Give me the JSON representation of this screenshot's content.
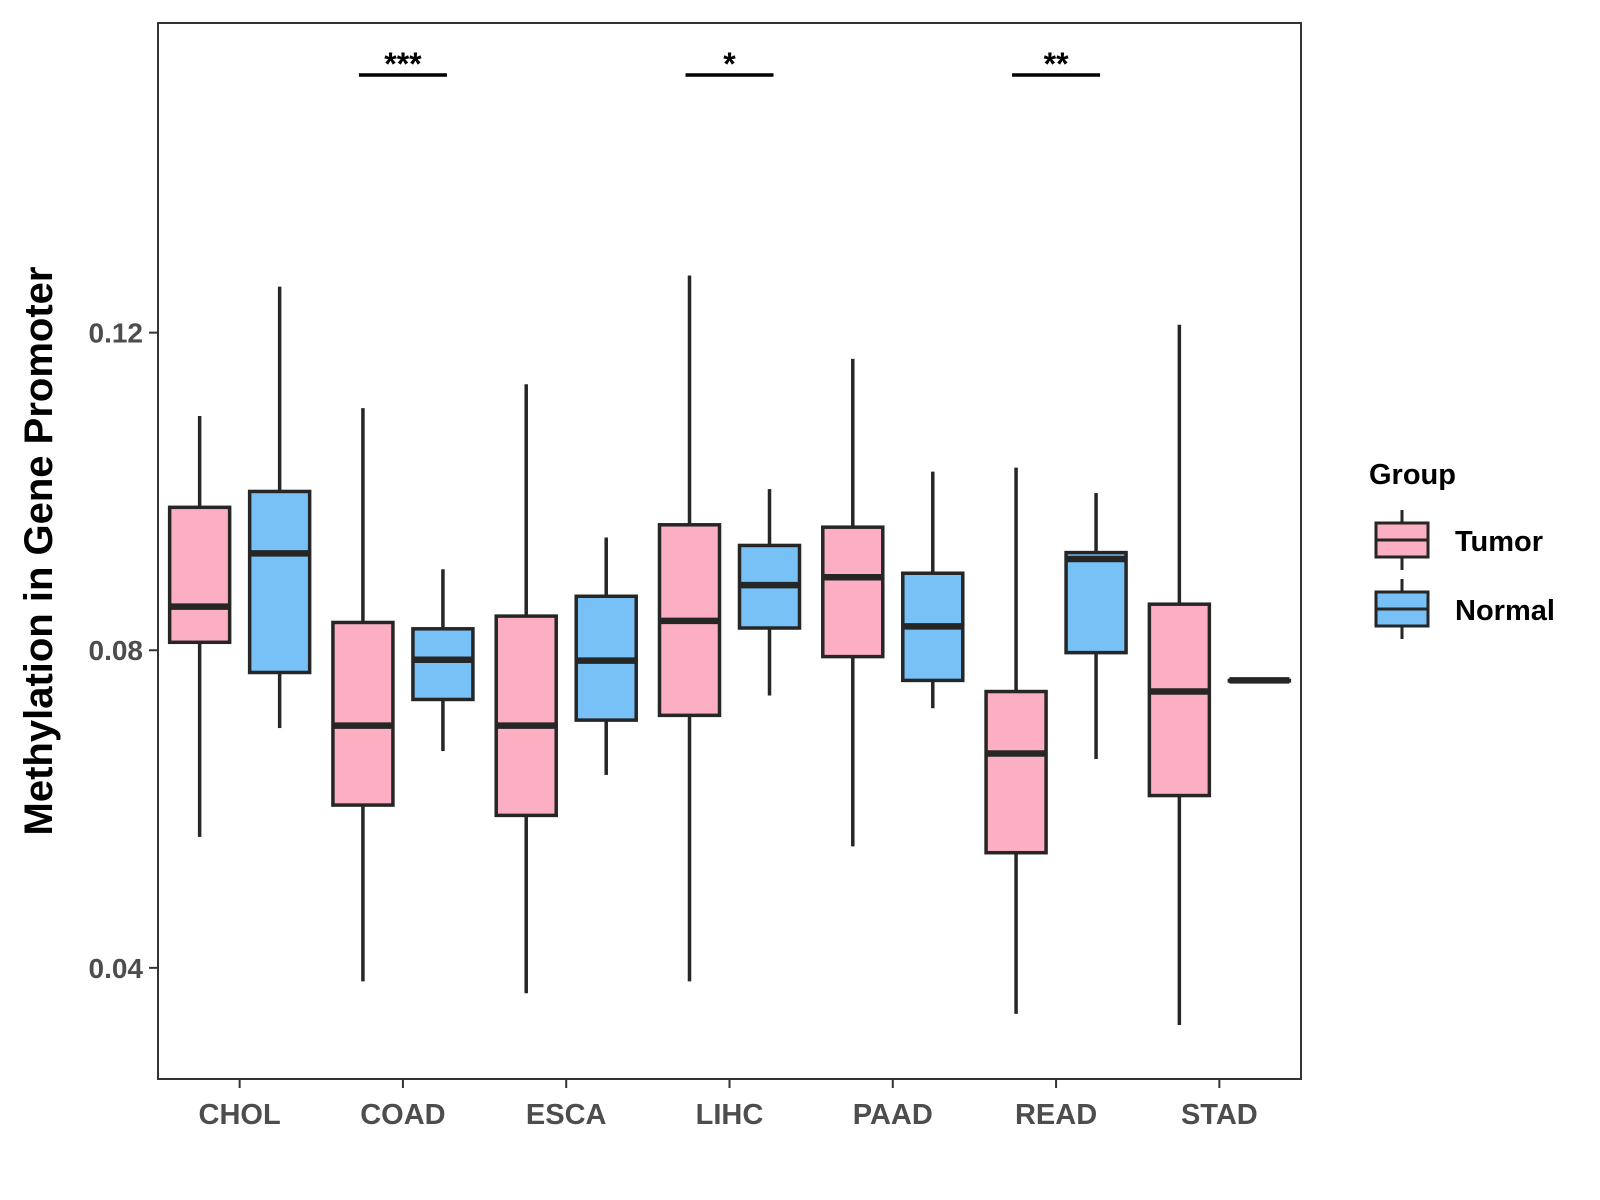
{
  "chart_data": {
    "type": "boxplot",
    "title": "",
    "xlabel": "",
    "ylabel": "Methylation in Gene Promoter",
    "ylim": [
      0.026,
      0.159
    ],
    "yticks": [
      0.04,
      0.08,
      0.12
    ],
    "ytick_labels": [
      "0.04",
      "0.08",
      "0.12"
    ],
    "categories": [
      "CHOL",
      "COAD",
      "ESCA",
      "LIHC",
      "PAAD",
      "READ",
      "STAD"
    ],
    "legend": {
      "title": "Group",
      "position": "right",
      "items": [
        {
          "name": "Tumor",
          "color": "#FCAFC2"
        },
        {
          "name": "Normal",
          "color": "#77C1F7"
        }
      ]
    },
    "series": [
      {
        "name": "Tumor",
        "color": "#FCAFC2",
        "boxes": [
          {
            "category": "CHOL",
            "min": 0.0565,
            "q1": 0.081,
            "median": 0.0855,
            "q3": 0.098,
            "max": 0.1095
          },
          {
            "category": "COAD",
            "min": 0.0383,
            "q1": 0.0605,
            "median": 0.0705,
            "q3": 0.0835,
            "max": 0.1105
          },
          {
            "category": "ESCA",
            "min": 0.0368,
            "q1": 0.0592,
            "median": 0.0705,
            "q3": 0.0843,
            "max": 0.1135
          },
          {
            "category": "LIHC",
            "min": 0.0383,
            "q1": 0.0718,
            "median": 0.0837,
            "q3": 0.0958,
            "max": 0.1272
          },
          {
            "category": "PAAD",
            "min": 0.0553,
            "q1": 0.0792,
            "median": 0.0892,
            "q3": 0.0955,
            "max": 0.1167
          },
          {
            "category": "READ",
            "min": 0.0342,
            "q1": 0.0545,
            "median": 0.067,
            "q3": 0.0748,
            "max": 0.103
          },
          {
            "category": "STAD",
            "min": 0.0328,
            "q1": 0.0617,
            "median": 0.0748,
            "q3": 0.0858,
            "max": 0.121
          }
        ]
      },
      {
        "name": "Normal",
        "color": "#77C1F7",
        "boxes": [
          {
            "category": "CHOL",
            "min": 0.0702,
            "q1": 0.0772,
            "median": 0.0922,
            "q3": 0.1,
            "max": 0.1258
          },
          {
            "category": "COAD",
            "min": 0.0673,
            "q1": 0.0738,
            "median": 0.0788,
            "q3": 0.0827,
            "max": 0.0902
          },
          {
            "category": "ESCA",
            "min": 0.0643,
            "q1": 0.0712,
            "median": 0.0787,
            "q3": 0.0868,
            "max": 0.0942
          },
          {
            "category": "LIHC",
            "min": 0.0743,
            "q1": 0.0828,
            "median": 0.0882,
            "q3": 0.0932,
            "max": 0.1003
          },
          {
            "category": "PAAD",
            "min": 0.0727,
            "q1": 0.0762,
            "median": 0.083,
            "q3": 0.0897,
            "max": 0.1025
          },
          {
            "category": "READ",
            "min": 0.0663,
            "q1": 0.0797,
            "median": 0.0915,
            "q3": 0.0923,
            "max": 0.0998
          },
          {
            "category": "STAD",
            "min": 0.0762,
            "q1": 0.0762,
            "median": 0.0762,
            "q3": 0.0762,
            "max": 0.0762
          }
        ]
      }
    ],
    "significance": [
      {
        "category": "COAD",
        "label": "***"
      },
      {
        "category": "LIHC",
        "label": "*"
      },
      {
        "category": "READ",
        "label": "**"
      }
    ],
    "grid": false
  }
}
